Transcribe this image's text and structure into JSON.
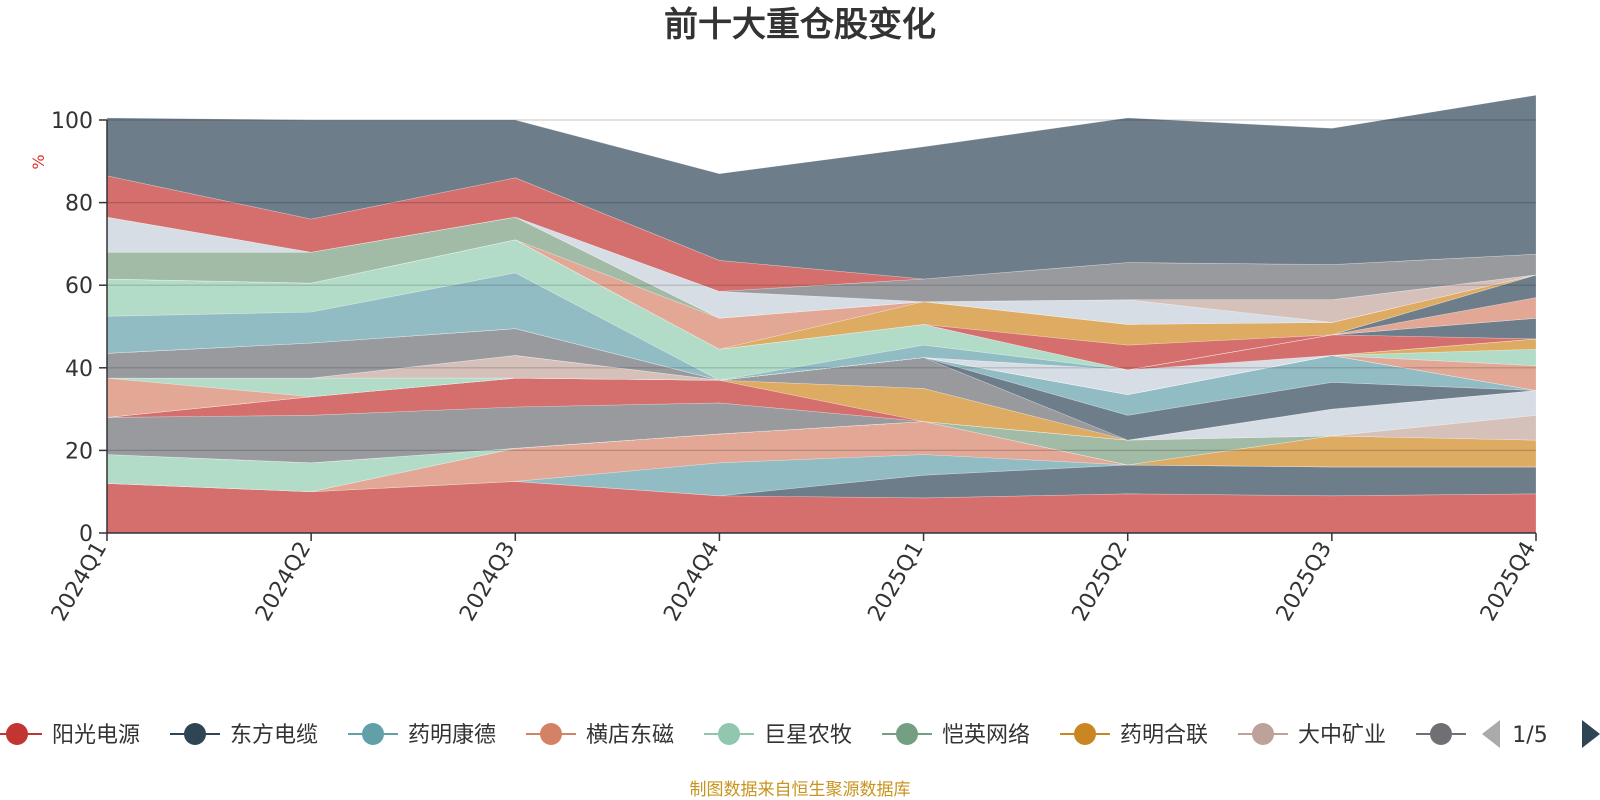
{
  "chart_data": {
    "type": "area",
    "stacked": true,
    "title": "前十大重仓股变化",
    "ylabel": "%",
    "ylim": [
      0,
      100
    ],
    "yticks": [
      0,
      20,
      40,
      60,
      80,
      100
    ],
    "grid": true,
    "x": [
      "2024Q1",
      "2024Q2",
      "2024Q3",
      "2024Q4",
      "2025Q1",
      "2025Q2",
      "2025Q3",
      "2025Q4"
    ],
    "series": [
      {
        "name": "阳光电源",
        "color": "#d46f6d",
        "values": [
          12,
          10,
          12.5,
          9,
          8.5,
          9.5,
          9,
          9.5
        ]
      },
      {
        "color": "#6e7d8a",
        "values": [
          0,
          0,
          0,
          0,
          5.5,
          7,
          7,
          6.5
        ]
      },
      {
        "color": "#92bcc3",
        "values": [
          0,
          0,
          0,
          8,
          5,
          0,
          0,
          0
        ]
      },
      {
        "color": "#e2a795",
        "values": [
          0,
          0,
          8,
          7,
          8,
          0,
          0,
          0
        ]
      },
      {
        "color": "#deab62",
        "values": [
          0,
          0,
          0,
          0,
          0,
          0,
          7.5,
          6.5
        ]
      },
      {
        "color": "#b2dbc8",
        "values": [
          7,
          7,
          0,
          0,
          0,
          0,
          0,
          0
        ]
      },
      {
        "color": "#a2bba6",
        "values": [
          0,
          0,
          0,
          0,
          0,
          6,
          0,
          0
        ]
      },
      {
        "color": "#d5c0ba",
        "values": [
          0,
          0,
          0,
          0,
          0,
          0,
          0,
          6
        ]
      },
      {
        "color": "#d7dde4",
        "values": [
          0,
          0,
          0,
          0,
          0,
          0,
          6.5,
          6
        ]
      },
      {
        "color": "#999a9e",
        "values": [
          9,
          11.5,
          10,
          7.5,
          0,
          0,
          0,
          0
        ]
      },
      {
        "color": "#d46f6d",
        "values": [
          0,
          4.5,
          7,
          5.5,
          0,
          0,
          0,
          0
        ]
      },
      {
        "color": "#deab62",
        "values": [
          0,
          0,
          0,
          0,
          8,
          0,
          0,
          0
        ]
      },
      {
        "color": "#999a9e",
        "values": [
          0,
          0,
          0,
          0,
          7.5,
          0,
          0,
          0
        ]
      },
      {
        "color": "#6e7d8a",
        "values": [
          0,
          0,
          0,
          0,
          0,
          6,
          6.5,
          0
        ]
      },
      {
        "color": "#92bcc3",
        "values": [
          0,
          0,
          0,
          0,
          0,
          5,
          6.5,
          0
        ]
      },
      {
        "color": "#e2a795",
        "values": [
          9.5,
          0,
          0,
          0,
          0,
          0,
          0,
          0
        ]
      },
      {
        "color": "#b2dbc8",
        "values": [
          0,
          4.5,
          0,
          0,
          0,
          0,
          0,
          0
        ]
      },
      {
        "color": "#d5c0ba",
        "values": [
          0,
          0,
          5.5,
          0,
          0,
          0,
          0,
          0
        ]
      },
      {
        "color": "#e2a795",
        "values": [
          0,
          0,
          0,
          0,
          0,
          0,
          0,
          6
        ]
      },
      {
        "color": "#b2dbc8",
        "values": [
          0,
          0,
          0,
          0,
          0,
          0,
          0,
          4
        ]
      },
      {
        "color": "#deab62",
        "values": [
          0,
          0,
          0,
          0,
          0,
          0,
          0,
          2.5
        ]
      },
      {
        "color": "#999a9e",
        "values": [
          6,
          8.5,
          6.5,
          0,
          0,
          0,
          0,
          0
        ]
      },
      {
        "color": "#d7dde4",
        "values": [
          0,
          0,
          0,
          0,
          0,
          6,
          0,
          0
        ]
      },
      {
        "color": "#d46f6d",
        "values": [
          0,
          0,
          0,
          0,
          0,
          0,
          5,
          0
        ]
      },
      {
        "color": "#6e7d8a",
        "values": [
          0,
          0,
          0,
          0,
          0,
          0,
          0,
          5
        ]
      },
      {
        "color": "#92bcc3",
        "values": [
          9,
          7.5,
          13.5,
          0,
          3,
          0,
          0,
          0
        ]
      },
      {
        "color": "#b2dbc8",
        "values": [
          9,
          7,
          8,
          7.5,
          5,
          0,
          0,
          0
        ]
      },
      {
        "color": "#e2a795",
        "values": [
          0,
          0,
          0,
          0,
          0,
          0,
          0,
          5
        ]
      },
      {
        "color": "#6e7d8a",
        "values": [
          0,
          0,
          0,
          0,
          0,
          0,
          0,
          5.5
        ]
      },
      {
        "color": "#d46f6d",
        "values": [
          0,
          0,
          0,
          0,
          0,
          6,
          0,
          0
        ]
      },
      {
        "color": "#deab62",
        "values": [
          0,
          0,
          0,
          0,
          5.5,
          5,
          3,
          0
        ]
      },
      {
        "color": "#e2a795",
        "values": [
          0,
          0,
          0,
          7.5,
          0,
          0,
          0,
          0
        ]
      },
      {
        "color": "#a2bba6",
        "values": [
          6.5,
          7.5,
          5.5,
          0,
          0,
          0,
          0,
          0
        ]
      },
      {
        "color": "#d7dde4",
        "values": [
          0,
          0,
          0,
          0,
          0,
          6,
          0,
          0
        ]
      },
      {
        "color": "#d5c0ba",
        "values": [
          0,
          0,
          0,
          0,
          0,
          0,
          5.5,
          0
        ]
      },
      {
        "color": "#d7dde4",
        "values": [
          8.5,
          0,
          0,
          6.5,
          0,
          0,
          0,
          0
        ]
      },
      {
        "color": "#999a9e",
        "values": [
          0,
          0,
          0,
          0,
          5.5,
          9,
          8.5,
          5
        ]
      },
      {
        "color": "#d46f6d",
        "values": [
          10,
          8,
          9.5,
          7.5,
          0,
          0,
          0,
          0
        ]
      },
      {
        "color": "#6e7d8a",
        "values": [
          14,
          24,
          14,
          21,
          32,
          35,
          33,
          38.5
        ]
      }
    ],
    "legend": {
      "placement": "bottom",
      "items": [
        {
          "label": "阳光电源",
          "color": "#c23531"
        },
        {
          "label": "东方电缆",
          "color": "#2f4554"
        },
        {
          "label": "药明康德",
          "color": "#61a0a8"
        },
        {
          "label": "横店东磁",
          "color": "#d48265"
        },
        {
          "label": "巨星农牧",
          "color": "#91c7ae"
        },
        {
          "label": "恺英网络",
          "color": "#749f83"
        },
        {
          "label": "药明合联",
          "color": "#ca8622"
        },
        {
          "label": "大中矿业",
          "color": "#bda29a"
        },
        {
          "label": "",
          "color": "#6e7074"
        }
      ],
      "page": "1/5"
    },
    "source": "制图数据来自恒生聚源数据库"
  }
}
